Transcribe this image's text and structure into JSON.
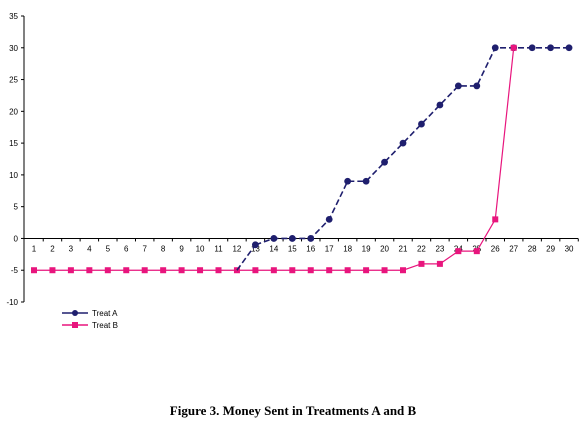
{
  "caption": "Figure 3. Money Sent in Treatments A and B",
  "chart_data": {
    "type": "line",
    "title": "",
    "xlabel": "",
    "ylabel": "",
    "x": [
      1,
      2,
      3,
      4,
      5,
      6,
      7,
      8,
      9,
      10,
      11,
      12,
      13,
      14,
      15,
      16,
      17,
      18,
      19,
      20,
      21,
      22,
      23,
      24,
      25,
      26,
      27,
      28,
      29,
      30
    ],
    "ylim": [
      -10,
      35
    ],
    "yticks": [
      -10,
      -5,
      0,
      5,
      10,
      15,
      20,
      25,
      30,
      35
    ],
    "xticks": [
      1,
      2,
      3,
      4,
      5,
      6,
      7,
      8,
      9,
      10,
      11,
      12,
      13,
      14,
      15,
      16,
      17,
      18,
      19,
      20,
      21,
      22,
      23,
      24,
      25,
      26,
      27,
      28,
      29,
      30
    ],
    "grid": false,
    "legend_position": "bottom-left",
    "series": [
      {
        "name": "Treat A",
        "color": "#1f1f6e",
        "marker": "circle",
        "line": "dashed",
        "x": [
          13,
          14,
          15,
          16,
          17,
          18,
          19,
          20,
          21,
          22,
          23,
          24,
          25,
          26,
          27,
          28,
          29,
          30
        ],
        "values": [
          -1,
          0,
          0,
          0,
          3,
          9,
          9,
          12,
          15,
          18,
          21,
          24,
          24,
          30,
          30,
          30,
          30,
          30
        ]
      },
      {
        "name": "Treat B",
        "color": "#e8157d",
        "marker": "square",
        "line": "solid",
        "x": [
          1,
          2,
          3,
          4,
          5,
          6,
          7,
          8,
          9,
          10,
          11,
          12,
          13,
          14,
          15,
          16,
          17,
          18,
          19,
          20,
          21,
          22,
          23,
          24,
          25,
          26,
          27
        ],
        "values": [
          -5,
          -5,
          -5,
          -5,
          -5,
          -5,
          -5,
          -5,
          -5,
          -5,
          -5,
          -5,
          -5,
          -5,
          -5,
          -5,
          -5,
          -5,
          -5,
          -5,
          -5,
          -4,
          -4,
          -2,
          -2,
          3,
          30
        ]
      }
    ],
    "dashed_lead_in": {
      "from_x": 12,
      "from_y": -5,
      "to_x": 13,
      "to_y": -1
    }
  }
}
